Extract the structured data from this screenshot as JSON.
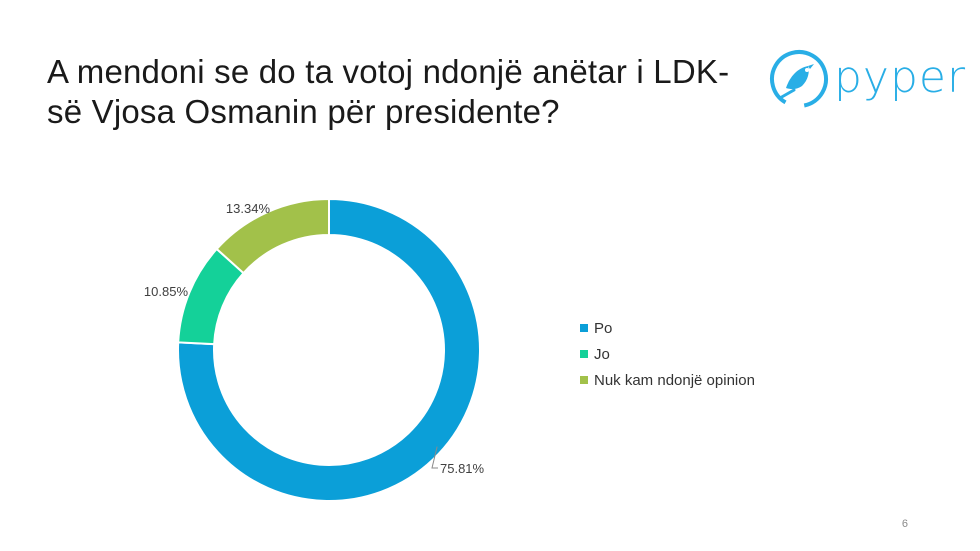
{
  "slide": {
    "title": "A mendoni se do ta votoj ndonjë anëtar i LDK-së Vjosa Osmanin për presidente?",
    "logo_text": "pyper",
    "page_number": "6"
  },
  "chart_data": {
    "type": "pie",
    "style": "donut",
    "title": "",
    "categories": [
      "Po",
      "Jo",
      "Nuk kam ndonjë opinion"
    ],
    "values": [
      75.81,
      10.85,
      13.34
    ],
    "labels": [
      "75.81%",
      "10.85%",
      "13.34%"
    ],
    "colors": [
      "#0b9fd8",
      "#14d199",
      "#a2c14a"
    ],
    "legend_position": "right"
  }
}
